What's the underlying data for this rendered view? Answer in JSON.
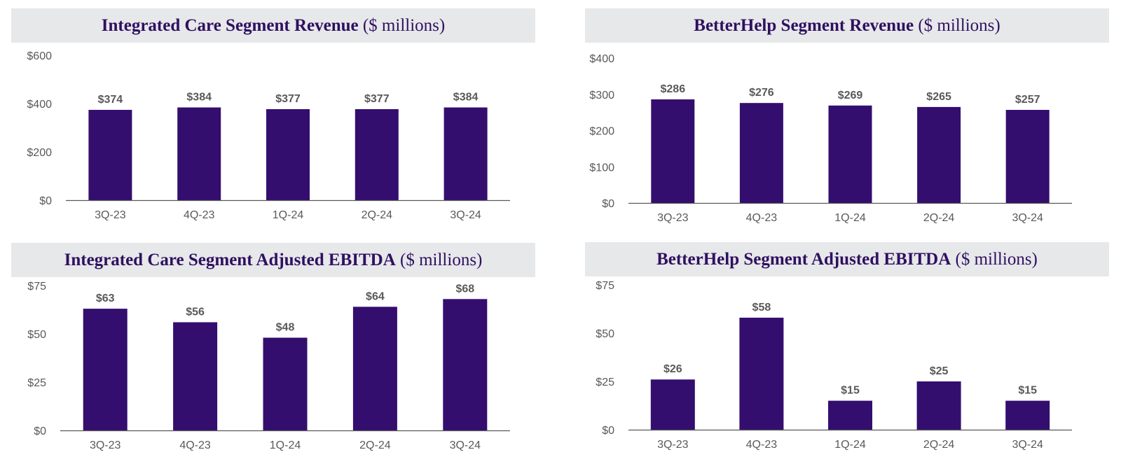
{
  "colors": {
    "bar": "#330e6e",
    "title_bg": "#e7e8ea",
    "title_text": "#2f1060",
    "axis": "#595959"
  },
  "chart_data": [
    {
      "type": "bar",
      "title": "Integrated Care Segment Revenue",
      "subtitle": "($ millions)",
      "categories": [
        "3Q-23",
        "4Q-23",
        "1Q-24",
        "2Q-24",
        "3Q-24"
      ],
      "values": [
        374,
        384,
        377,
        377,
        384
      ],
      "data_labels": [
        "$374",
        "$384",
        "$377",
        "$377",
        "$384"
      ],
      "yticks": [
        0,
        200,
        400,
        600
      ],
      "ytick_labels": [
        "$0",
        "$200",
        "$400",
        "$600"
      ],
      "ylim": [
        0,
        600
      ],
      "grid": false,
      "legend": "none"
    },
    {
      "type": "bar",
      "title": "BetterHelp Segment Revenue",
      "subtitle": "($ millions)",
      "categories": [
        "3Q-23",
        "4Q-23",
        "1Q-24",
        "2Q-24",
        "3Q-24"
      ],
      "values": [
        286,
        276,
        269,
        265,
        257
      ],
      "data_labels": [
        "$286",
        "$276",
        "$269",
        "$265",
        "$257"
      ],
      "yticks": [
        0,
        100,
        200,
        300,
        400
      ],
      "ytick_labels": [
        "$0",
        "$100",
        "$200",
        "$300",
        "$400"
      ],
      "ylim": [
        0,
        400
      ],
      "grid": false,
      "legend": "none"
    },
    {
      "type": "bar",
      "title": "Integrated Care Segment Adjusted EBITDA",
      "subtitle": "($ millions)",
      "categories": [
        "3Q-23",
        "4Q-23",
        "1Q-24",
        "2Q-24",
        "3Q-24"
      ],
      "values": [
        63,
        56,
        48,
        64,
        68
      ],
      "data_labels": [
        "$63",
        "$56",
        "$48",
        "$64",
        "$68"
      ],
      "yticks": [
        0,
        25,
        50,
        75
      ],
      "ytick_labels": [
        "$0",
        "$25",
        "$50",
        "$75"
      ],
      "ylim": [
        0,
        75
      ],
      "grid": false,
      "legend": "none"
    },
    {
      "type": "bar",
      "title": "BetterHelp Segment Adjusted EBITDA",
      "subtitle": "($ millions)",
      "categories": [
        "3Q-23",
        "4Q-23",
        "1Q-24",
        "2Q-24",
        "3Q-24"
      ],
      "values": [
        26,
        58,
        15,
        25,
        15
      ],
      "data_labels": [
        "$26",
        "$58",
        "$15",
        "$25",
        "$15"
      ],
      "yticks": [
        0,
        25,
        50,
        75
      ],
      "ytick_labels": [
        "$0",
        "$25",
        "$50",
        "$75"
      ],
      "ylim": [
        0,
        75
      ],
      "grid": false,
      "legend": "none"
    }
  ]
}
